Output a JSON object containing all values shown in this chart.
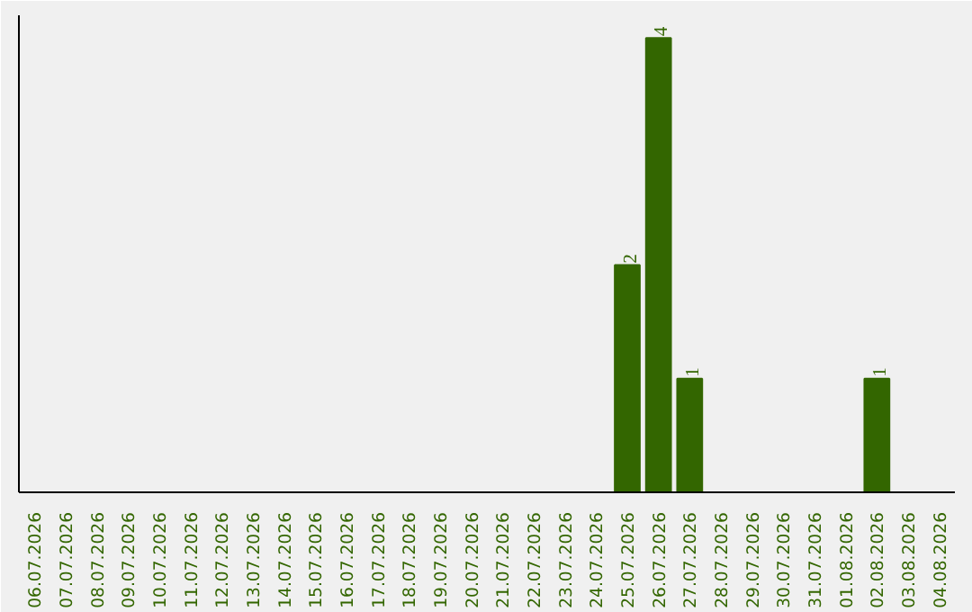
{
  "chart_data": {
    "type": "bar",
    "categories": [
      "06.07.2026",
      "07.07.2026",
      "08.07.2026",
      "09.07.2026",
      "10.07.2026",
      "11.07.2026",
      "12.07.2026",
      "13.07.2026",
      "14.07.2026",
      "15.07.2026",
      "16.07.2026",
      "17.07.2026",
      "18.07.2026",
      "19.07.2026",
      "20.07.2026",
      "21.07.2026",
      "22.07.2026",
      "23.07.2026",
      "24.07.2026",
      "25.07.2026",
      "26.07.2026",
      "27.07.2026",
      "28.07.2026",
      "29.07.2026",
      "30.07.2026",
      "31.07.2026",
      "01.08.2026",
      "02.08.2026",
      "03.08.2026",
      "04.08.2026"
    ],
    "values": [
      null,
      null,
      null,
      null,
      null,
      null,
      null,
      null,
      null,
      null,
      null,
      null,
      null,
      null,
      null,
      null,
      null,
      null,
      null,
      2,
      4,
      1,
      null,
      null,
      null,
      null,
      null,
      1,
      null,
      null
    ],
    "color": "#336600",
    "data_labels": true,
    "ylim": [
      0,
      4.2
    ],
    "tick_labels": "x",
    "grid": false
  }
}
